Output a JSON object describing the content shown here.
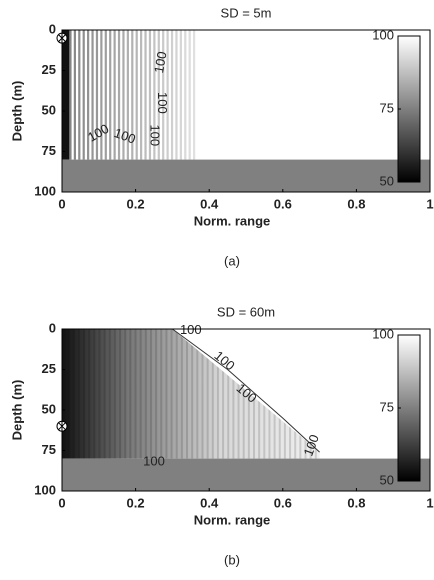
{
  "chart_data": [
    {
      "type": "heatmap",
      "title": "SD = 5m",
      "xlabel": "Norm. range",
      "ylabel": "Depth (m)",
      "caption": "(a)",
      "xlim": [
        0,
        1
      ],
      "xticks": [
        0,
        0.2,
        0.4,
        0.6,
        0.8,
        1
      ],
      "ylim": [
        0,
        100
      ],
      "yticks": [
        0,
        25,
        50,
        75,
        100
      ],
      "source_depth": 5,
      "bottom_depth": 80,
      "colorbar": {
        "lim": [
          50,
          100
        ],
        "ticks": [
          50,
          75,
          100
        ]
      },
      "contour_labels": [
        "100",
        "100",
        "100",
        "100",
        "100"
      ]
    },
    {
      "type": "heatmap",
      "title": "SD = 60m",
      "xlabel": "Norm. range",
      "ylabel": "Depth (m)",
      "caption": "(b)",
      "xlim": [
        0,
        1
      ],
      "xticks": [
        0,
        0.2,
        0.4,
        0.6,
        0.8,
        1
      ],
      "ylim": [
        0,
        100
      ],
      "yticks": [
        0,
        25,
        50,
        75,
        100
      ],
      "source_depth": 60,
      "bottom_depth": 80,
      "colorbar": {
        "lim": [
          50,
          100
        ],
        "ticks": [
          50,
          75,
          100
        ]
      },
      "contour_labels": [
        "100",
        "100",
        "100",
        "100",
        "100"
      ]
    }
  ]
}
